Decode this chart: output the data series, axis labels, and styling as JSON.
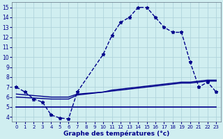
{
  "xlabel": "Graphe des températures (°c)",
  "background_color": "#d0eef0",
  "grid_color": "#b0d4dc",
  "line_color": "#00008b",
  "xlim": [
    -0.5,
    23.5
  ],
  "ylim": [
    3.5,
    15.5
  ],
  "xticks": [
    0,
    1,
    2,
    3,
    4,
    5,
    6,
    7,
    8,
    9,
    10,
    11,
    12,
    13,
    14,
    15,
    16,
    17,
    18,
    19,
    20,
    21,
    22,
    23
  ],
  "yticks": [
    4,
    5,
    6,
    7,
    8,
    9,
    10,
    11,
    12,
    13,
    14,
    15
  ],
  "line1_x": [
    0,
    1,
    2,
    3,
    4,
    5,
    6,
    7,
    10,
    11,
    12,
    13,
    14,
    15,
    16,
    17,
    18,
    19,
    20,
    21,
    22,
    23
  ],
  "line1_y": [
    7.0,
    6.5,
    5.8,
    5.5,
    4.2,
    3.9,
    3.8,
    6.5,
    10.3,
    12.2,
    13.5,
    14.0,
    15.0,
    15.0,
    14.0,
    13.0,
    12.5,
    12.5,
    9.5,
    7.0,
    7.5,
    6.5
  ],
  "line2_x": [
    0,
    23
  ],
  "line2_y": [
    5.0,
    5.0
  ],
  "line3_x": [
    0,
    4,
    6,
    7,
    10,
    11,
    12,
    13,
    14,
    15,
    16,
    17,
    18,
    19,
    20,
    21,
    22,
    23
  ],
  "line3_y": [
    6.0,
    5.8,
    5.8,
    6.2,
    6.5,
    6.6,
    6.7,
    6.8,
    6.9,
    7.0,
    7.1,
    7.2,
    7.3,
    7.4,
    7.4,
    7.5,
    7.6,
    7.6
  ],
  "line4_x": [
    0,
    4,
    6,
    7,
    10,
    11,
    12,
    13,
    14,
    15,
    16,
    17,
    18,
    19,
    20,
    21,
    22,
    23
  ],
  "line4_y": [
    6.3,
    6.0,
    6.0,
    6.3,
    6.5,
    6.7,
    6.8,
    6.9,
    7.0,
    7.1,
    7.2,
    7.3,
    7.4,
    7.5,
    7.5,
    7.6,
    7.7,
    7.7
  ]
}
